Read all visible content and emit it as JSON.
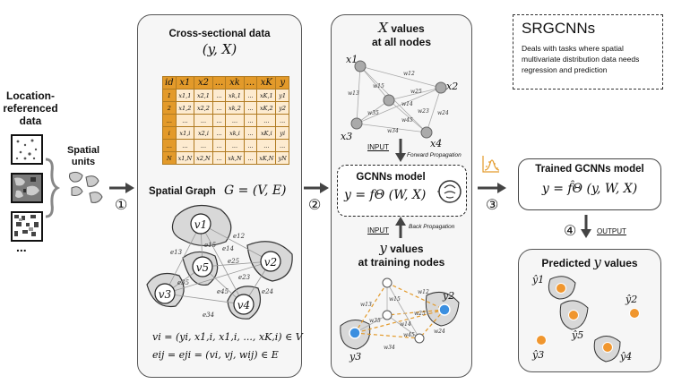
{
  "left": {
    "title": "Location-referenced data",
    "ellipsis": "...",
    "spatial_units_label": "Spatial units",
    "step1": "①"
  },
  "panel1": {
    "title": "Cross-sectional data",
    "formula": "(y, X)",
    "table_header": [
      "id",
      "x1",
      "x2",
      "...",
      "xk",
      "...",
      "xK",
      "y"
    ],
    "table_rows": [
      [
        "1",
        "x1,1",
        "x2,1",
        "...",
        "xk,1",
        "...",
        "xK,1",
        "y1"
      ],
      [
        "2",
        "x1,2",
        "x2,2",
        "...",
        "xk,2",
        "...",
        "xK,2",
        "y2"
      ],
      [
        "...",
        "...",
        "...",
        "...",
        "...",
        "...",
        "...",
        "..."
      ],
      [
        "i",
        "x1,i",
        "x2,i",
        "...",
        "xk,i",
        "...",
        "xK,i",
        "yi"
      ],
      [
        "...",
        "...",
        "...",
        "...",
        "...",
        "...",
        "...",
        "..."
      ],
      [
        "N",
        "x1,N",
        "x2,N",
        "...",
        "xk,N",
        "...",
        "xK,N",
        "yN"
      ]
    ],
    "graph_label": "Spatial Graph",
    "graph_formula": "G = (V, E)",
    "nodes": [
      "v1",
      "v2",
      "v3",
      "v4",
      "v5"
    ],
    "edges": [
      "e12",
      "e14",
      "e13",
      "e15",
      "e25",
      "e35",
      "e45",
      "e23",
      "e24",
      "e34"
    ],
    "eq1": "vi = (yi, x1,i, x1,i, ..., xK,i) ∈ V",
    "eq2": "eij = eji = (vi, vj, wij) ∈ E"
  },
  "arrows": {
    "step2": "②",
    "step3": "③",
    "step4": "④"
  },
  "panel2": {
    "top_title_math": "X",
    "top_title_rest": "values",
    "top_title_line2": "at all nodes",
    "nodes": [
      "x1",
      "x2",
      "x3",
      "x4"
    ],
    "weights": [
      "w12",
      "w13",
      "w15",
      "w25",
      "w14",
      "w35",
      "w45",
      "w23",
      "w24",
      "w34"
    ],
    "input1": "INPUT",
    "forward": "Forward Propagation",
    "model_title": "GCNNs model",
    "model_formula": "y = fΘ (W, X)",
    "input2": "INPUT",
    "back": "Back Propagation",
    "bottom_title_math": "y",
    "bottom_title_rest": "values",
    "bottom_title_line2": "at training nodes",
    "bottom_nodes": [
      "y2",
      "y3"
    ],
    "bottom_weights": [
      "w12",
      "w13",
      "w15",
      "w25",
      "w14",
      "w35",
      "w45",
      "w24",
      "w34"
    ]
  },
  "srg": {
    "title": "SRGCNNs",
    "desc": "Deals with tasks where spatial multivariate distribution data needs regression and prediction"
  },
  "trained": {
    "title": "Trained GCNNs model",
    "formula": "y = f̂Θ (y, W, X)"
  },
  "output": {
    "label": "OUTPUT"
  },
  "predicted": {
    "title_word": "Predicted",
    "title_math": "y",
    "title_rest": "values",
    "labels": [
      "ŷ1",
      "ŷ2",
      "ŷ3",
      "ŷ4",
      "ŷ5"
    ]
  },
  "colors": {
    "orange": "#e39a2a",
    "blue": "#3b8fe0",
    "gray_node": "#aaaaaa"
  }
}
